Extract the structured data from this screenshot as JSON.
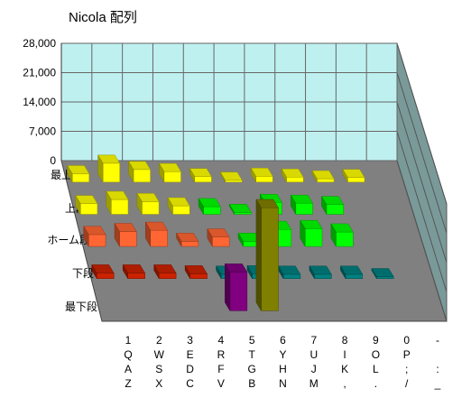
{
  "chart_data": {
    "type": "bar",
    "subtype": "3d-column",
    "title": "Nicola 配列",
    "y_ticks": [
      "28,000",
      "21,000",
      "14,000",
      "7,000",
      "0"
    ],
    "ylim": [
      0,
      28000
    ],
    "rows": [
      "最上段",
      "上段",
      "ホーム段",
      "下段",
      "最下段"
    ],
    "categories": [
      [
        "1",
        "Q",
        "A",
        "Z"
      ],
      [
        "2",
        "W",
        "S",
        "X"
      ],
      [
        "3",
        "E",
        "D",
        "C"
      ],
      [
        "4",
        "R",
        "F",
        "V"
      ],
      [
        "5",
        "T",
        "G",
        "B"
      ],
      [
        "6",
        "Y",
        "H",
        "N"
      ],
      [
        "7",
        "U",
        "J",
        "M"
      ],
      [
        "8",
        "I",
        "K",
        ","
      ],
      [
        "9",
        "O",
        "L",
        "."
      ],
      [
        "0",
        "P",
        ";",
        "/"
      ],
      [
        "-",
        "",
        ":",
        "_"
      ]
    ],
    "series": [
      {
        "values": [
          2000,
          4500,
          3000,
          2500,
          1300,
          0,
          1400,
          1200,
          800,
          1100,
          null
        ]
      },
      {
        "values": [
          2500,
          3500,
          3000,
          2000,
          1800,
          0,
          2800,
          2600,
          2300,
          null,
          null
        ]
      },
      {
        "values": [
          2800,
          3500,
          3800,
          1200,
          2200,
          1200,
          4000,
          4200,
          3400,
          null,
          null
        ]
      },
      {
        "values": [
          1300,
          1300,
          1300,
          1100,
          1000,
          1100,
          1000,
          1000,
          1000,
          400,
          null
        ]
      },
      {
        "values": [
          null,
          null,
          null,
          null,
          9000,
          24000,
          null,
          null,
          null,
          null,
          null
        ]
      }
    ],
    "colors": {
      "row1": "#ffff00",
      "row2": "#00ff00",
      "row3": "#ff6633",
      "row4": "#cc2200",
      "row4_right": "#008080",
      "row5_left": "#800080",
      "row5_right": "#808000",
      "wall": "#bff0f0",
      "floor": "#808080"
    }
  }
}
